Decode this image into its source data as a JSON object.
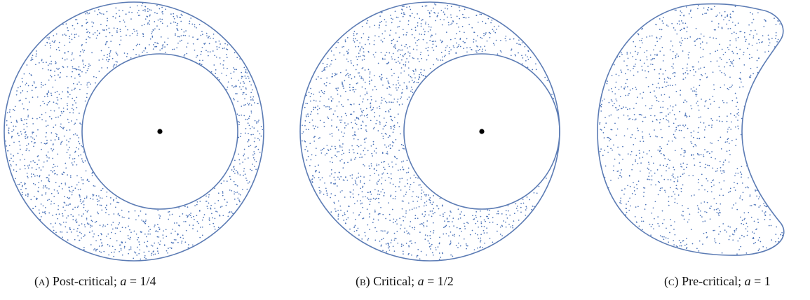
{
  "figure": {
    "stroke_color": "#5b7bb4",
    "dot_color": "#4a72b8",
    "center_color": "#000000",
    "panels": [
      {
        "id": "a",
        "label": "(a)",
        "caption_prefix": "Post-critical;",
        "param_var": "a",
        "param_eq": "= 1/4",
        "a_value": 0.25,
        "shape": "annulus"
      },
      {
        "id": "b",
        "label": "(b)",
        "caption_prefix": "Critical;",
        "param_var": "a",
        "param_eq": "= 1/2",
        "a_value": 0.5,
        "shape": "annulus-tangent"
      },
      {
        "id": "c",
        "label": "(c)",
        "caption_prefix": "Pre-critical;",
        "param_var": "a",
        "param_eq": "= 1",
        "a_value": 1,
        "shape": "crescent"
      }
    ]
  }
}
